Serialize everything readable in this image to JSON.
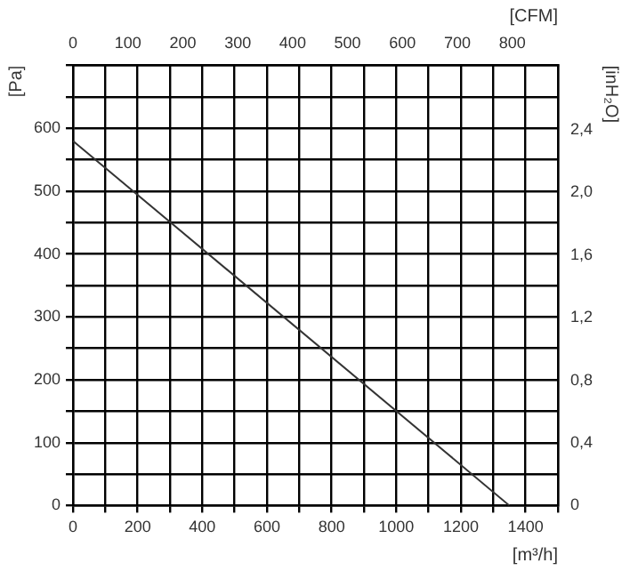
{
  "chart_data": {
    "type": "line",
    "xlabel": "[m³/h]",
    "ylabel": "[Pa]",
    "x2label": "[CFM]",
    "y2label": "[inH₂O]",
    "x": [
      0,
      1350
    ],
    "series": [
      {
        "color": "#333333",
        "values": [
          580,
          0
        ]
      }
    ],
    "xlim": [
      0,
      1500
    ],
    "xticks": [
      0,
      {
        "value": 100,
        "label": null
      },
      200,
      {
        "value": 300,
        "label": null
      },
      400,
      {
        "value": 500,
        "label": null
      },
      600,
      {
        "value": 700,
        "label": null
      },
      800,
      {
        "value": 900,
        "label": null
      },
      1000,
      {
        "value": 1100,
        "label": null
      },
      1200,
      {
        "value": 1300,
        "label": null
      },
      1400,
      {
        "value": 1500,
        "label": null
      }
    ],
    "ylim": [
      0,
      700
    ],
    "yticks": [
      0,
      {
        "value": 50,
        "label": null
      },
      100,
      {
        "value": 150,
        "label": null
      },
      200,
      {
        "value": 250,
        "label": null
      },
      300,
      {
        "value": 350,
        "label": null
      },
      400,
      {
        "value": 450,
        "label": null
      },
      500,
      {
        "value": 550,
        "label": null
      },
      600,
      {
        "value": 650,
        "label": null
      },
      {
        "value": 700,
        "label": null
      }
    ],
    "x2lim": [
      0,
      883
    ],
    "x2ticks": [
      0,
      100,
      200,
      300,
      400,
      500,
      600,
      700,
      800
    ],
    "y2lim": [
      0,
      2.81
    ],
    "y2ticks": [
      0,
      {
        "value": 0.4,
        "label": "0,4"
      },
      {
        "value": 0.8,
        "label": "0,8"
      },
      {
        "value": 1.2,
        "label": "1,2"
      },
      {
        "value": 1.6,
        "label": "1,6"
      },
      {
        "value": 2.0,
        "label": "2,0"
      },
      {
        "value": 2.4,
        "label": "2,4"
      }
    ],
    "grid": true,
    "legend": false,
    "marker": "none",
    "line_style": "solid"
  }
}
